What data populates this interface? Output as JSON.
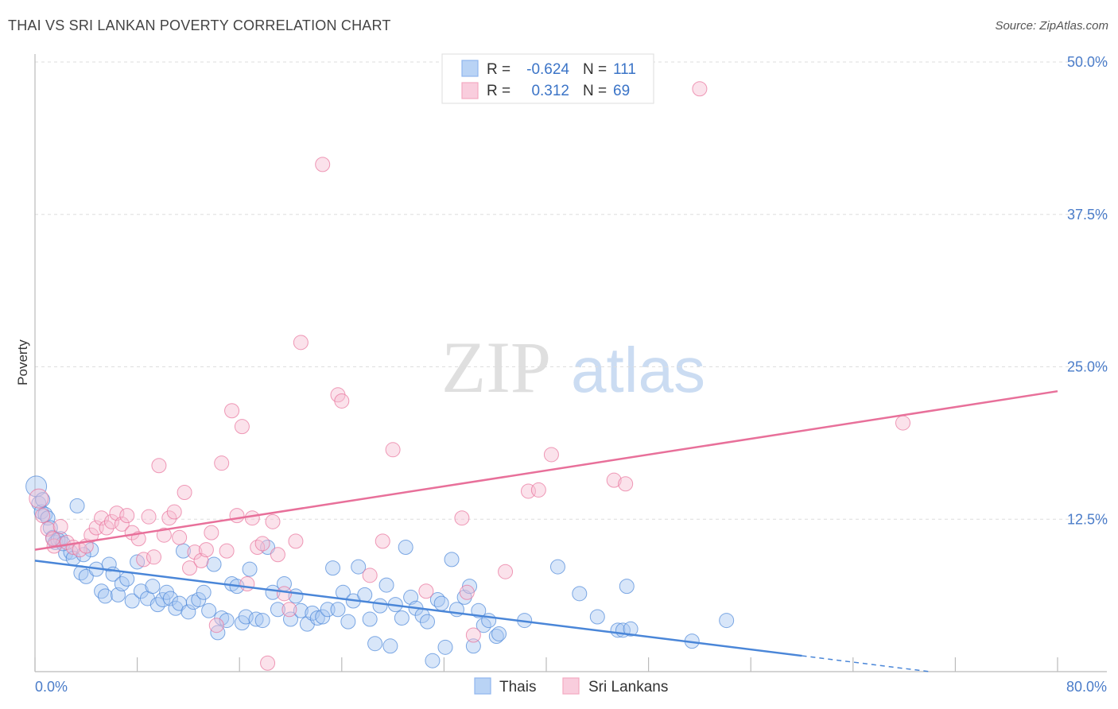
{
  "header": {
    "title": "THAI VS SRI LANKAN POVERTY CORRELATION CHART",
    "source": "Source: ZipAtlas.com"
  },
  "watermark": {
    "part1": "ZIP",
    "part2": "atlas"
  },
  "legend": {
    "rows": [
      {
        "r_label": "R =",
        "r_value": "-0.624",
        "n_label": "N =",
        "n_value": "111",
        "color": "#8fb6ee"
      },
      {
        "r_label": "R =",
        "r_value": "0.312",
        "n_label": "N =",
        "n_value": "69",
        "color": "#f4a9c2"
      }
    ]
  },
  "bottom_legend": [
    {
      "label": "Thais",
      "color": "#8fb6ee"
    },
    {
      "label": "Sri Lankans",
      "color": "#f4a9c2"
    }
  ],
  "chart_data": {
    "type": "scatter",
    "title": "THAI VS SRI LANKAN POVERTY CORRELATION CHART",
    "xlabel": "",
    "ylabel": "Poverty",
    "xlim": [
      0,
      80
    ],
    "ylim": [
      0,
      50
    ],
    "x_tick_labels": [
      "0.0%",
      "80.0%"
    ],
    "y_ticks": [
      12.5,
      25,
      37.5,
      50
    ],
    "y_tick_labels": [
      "12.5%",
      "25.0%",
      "37.5%",
      "50.0%"
    ],
    "grid": true,
    "legend_position": "top-center",
    "series": [
      {
        "name": "Thais",
        "color": "#4a86d8",
        "fill": "#a9c8f2",
        "trend": {
          "x0": 0,
          "y0": 9.1,
          "x1": 60,
          "y1": 1.3,
          "dash_to_x": 70,
          "dash_to_y": 0
        },
        "points": [
          [
            0.1,
            15.2
          ],
          [
            0.3,
            13.8
          ],
          [
            0.5,
            13.1
          ],
          [
            0.8,
            12.9
          ],
          [
            1.0,
            12.6
          ],
          [
            1.2,
            11.8
          ],
          [
            1.4,
            11.0
          ],
          [
            1.6,
            10.6
          ],
          [
            2.0,
            10.9
          ],
          [
            2.4,
            9.7
          ],
          [
            2.8,
            9.8
          ],
          [
            3.0,
            9.3
          ],
          [
            3.3,
            13.6
          ],
          [
            3.6,
            8.1
          ],
          [
            4.0,
            7.8
          ],
          [
            4.4,
            10.0
          ],
          [
            4.8,
            8.4
          ],
          [
            5.2,
            6.6
          ],
          [
            5.5,
            6.2
          ],
          [
            5.8,
            8.8
          ],
          [
            6.1,
            8.0
          ],
          [
            6.5,
            6.3
          ],
          [
            6.8,
            7.2
          ],
          [
            7.2,
            7.6
          ],
          [
            7.6,
            5.8
          ],
          [
            8.0,
            9.0
          ],
          [
            8.3,
            6.6
          ],
          [
            8.8,
            6.0
          ],
          [
            9.2,
            7.0
          ],
          [
            9.6,
            5.5
          ],
          [
            10.0,
            5.9
          ],
          [
            10.3,
            6.5
          ],
          [
            10.6,
            6.0
          ],
          [
            11.0,
            5.2
          ],
          [
            11.3,
            5.6
          ],
          [
            11.6,
            9.9
          ],
          [
            12.0,
            4.9
          ],
          [
            12.4,
            5.7
          ],
          [
            12.8,
            5.9
          ],
          [
            13.2,
            6.5
          ],
          [
            13.6,
            5.0
          ],
          [
            14.0,
            8.8
          ],
          [
            14.3,
            3.2
          ],
          [
            14.6,
            4.4
          ],
          [
            15.0,
            4.2
          ],
          [
            15.4,
            7.2
          ],
          [
            15.8,
            7.0
          ],
          [
            16.2,
            4.0
          ],
          [
            16.5,
            4.5
          ],
          [
            16.8,
            8.4
          ],
          [
            17.3,
            4.3
          ],
          [
            17.8,
            4.2
          ],
          [
            18.2,
            10.2
          ],
          [
            18.6,
            6.5
          ],
          [
            19.0,
            5.1
          ],
          [
            19.5,
            7.2
          ],
          [
            20.0,
            4.3
          ],
          [
            20.4,
            6.2
          ],
          [
            20.8,
            5.0
          ],
          [
            21.3,
            3.9
          ],
          [
            21.7,
            4.8
          ],
          [
            22.1,
            4.4
          ],
          [
            22.5,
            4.5
          ],
          [
            22.9,
            5.1
          ],
          [
            23.3,
            8.5
          ],
          [
            23.7,
            5.1
          ],
          [
            24.1,
            6.5
          ],
          [
            24.5,
            4.1
          ],
          [
            24.9,
            5.8
          ],
          [
            25.3,
            8.6
          ],
          [
            25.8,
            6.3
          ],
          [
            26.2,
            4.3
          ],
          [
            26.6,
            2.3
          ],
          [
            27.0,
            5.4
          ],
          [
            27.5,
            7.1
          ],
          [
            27.8,
            2.1
          ],
          [
            28.2,
            5.5
          ],
          [
            28.7,
            4.4
          ],
          [
            29.0,
            10.2
          ],
          [
            29.4,
            6.1
          ],
          [
            29.8,
            5.2
          ],
          [
            30.3,
            4.6
          ],
          [
            30.7,
            4.1
          ],
          [
            31.1,
            0.9
          ],
          [
            31.5,
            5.9
          ],
          [
            31.8,
            5.6
          ],
          [
            32.1,
            2.0
          ],
          [
            32.6,
            9.2
          ],
          [
            33.0,
            5.1
          ],
          [
            33.6,
            6.1
          ],
          [
            34.0,
            7.0
          ],
          [
            34.3,
            2.1
          ],
          [
            34.7,
            5.0
          ],
          [
            35.1,
            3.8
          ],
          [
            35.5,
            4.2
          ],
          [
            36.1,
            2.9
          ],
          [
            36.3,
            3.1
          ],
          [
            38.3,
            4.2
          ],
          [
            40.9,
            8.6
          ],
          [
            42.6,
            6.4
          ],
          [
            44.0,
            4.5
          ],
          [
            45.6,
            3.4
          ],
          [
            46.0,
            3.4
          ],
          [
            46.3,
            7.0
          ],
          [
            46.6,
            3.5
          ],
          [
            51.4,
            2.5
          ],
          [
            54.1,
            4.2
          ],
          [
            3.8,
            9.6
          ],
          [
            1.8,
            10.8
          ],
          [
            0.6,
            14.1
          ],
          [
            2.2,
            10.5
          ]
        ]
      },
      {
        "name": "Sri Lankans",
        "color": "#e8709a",
        "fill": "#f7bfd3",
        "trend": {
          "x0": 0,
          "y0": 10.0,
          "x1": 80,
          "y1": 23.0
        },
        "points": [
          [
            0.3,
            14.2
          ],
          [
            0.6,
            12.8
          ],
          [
            1.0,
            11.7
          ],
          [
            1.5,
            10.3
          ],
          [
            2.0,
            11.9
          ],
          [
            2.5,
            10.6
          ],
          [
            3.0,
            10.2
          ],
          [
            3.5,
            10.0
          ],
          [
            4.0,
            10.3
          ],
          [
            4.4,
            11.2
          ],
          [
            4.8,
            11.8
          ],
          [
            5.2,
            12.6
          ],
          [
            5.6,
            11.8
          ],
          [
            6.0,
            12.3
          ],
          [
            6.4,
            13.0
          ],
          [
            6.8,
            12.1
          ],
          [
            7.2,
            12.8
          ],
          [
            7.6,
            11.4
          ],
          [
            8.1,
            10.9
          ],
          [
            8.5,
            9.2
          ],
          [
            8.9,
            12.7
          ],
          [
            9.3,
            9.4
          ],
          [
            9.7,
            16.9
          ],
          [
            10.1,
            11.2
          ],
          [
            10.5,
            12.6
          ],
          [
            10.9,
            13.1
          ],
          [
            11.3,
            11.0
          ],
          [
            11.7,
            14.7
          ],
          [
            12.1,
            8.5
          ],
          [
            12.5,
            9.8
          ],
          [
            13.0,
            9.1
          ],
          [
            13.4,
            10.0
          ],
          [
            13.8,
            11.4
          ],
          [
            14.2,
            3.8
          ],
          [
            14.6,
            17.1
          ],
          [
            15.0,
            9.9
          ],
          [
            15.4,
            21.4
          ],
          [
            15.8,
            12.8
          ],
          [
            16.2,
            20.1
          ],
          [
            16.6,
            7.2
          ],
          [
            17.0,
            12.6
          ],
          [
            17.4,
            10.2
          ],
          [
            17.8,
            10.5
          ],
          [
            18.2,
            0.7
          ],
          [
            18.6,
            12.3
          ],
          [
            19.0,
            9.6
          ],
          [
            19.5,
            6.4
          ],
          [
            19.9,
            5.1
          ],
          [
            20.4,
            10.7
          ],
          [
            20.8,
            27.0
          ],
          [
            22.5,
            41.6
          ],
          [
            23.7,
            22.7
          ],
          [
            24.0,
            22.2
          ],
          [
            26.2,
            7.9
          ],
          [
            27.2,
            10.7
          ],
          [
            28.0,
            18.2
          ],
          [
            30.6,
            6.6
          ],
          [
            33.4,
            12.6
          ],
          [
            33.8,
            6.5
          ],
          [
            34.3,
            3.0
          ],
          [
            36.8,
            8.2
          ],
          [
            38.6,
            14.8
          ],
          [
            39.4,
            14.9
          ],
          [
            40.4,
            17.8
          ],
          [
            45.3,
            15.7
          ],
          [
            46.2,
            15.4
          ],
          [
            67.9,
            20.4
          ],
          [
            52.0,
            47.8
          ],
          [
            1.4,
            10.9
          ]
        ]
      }
    ]
  }
}
